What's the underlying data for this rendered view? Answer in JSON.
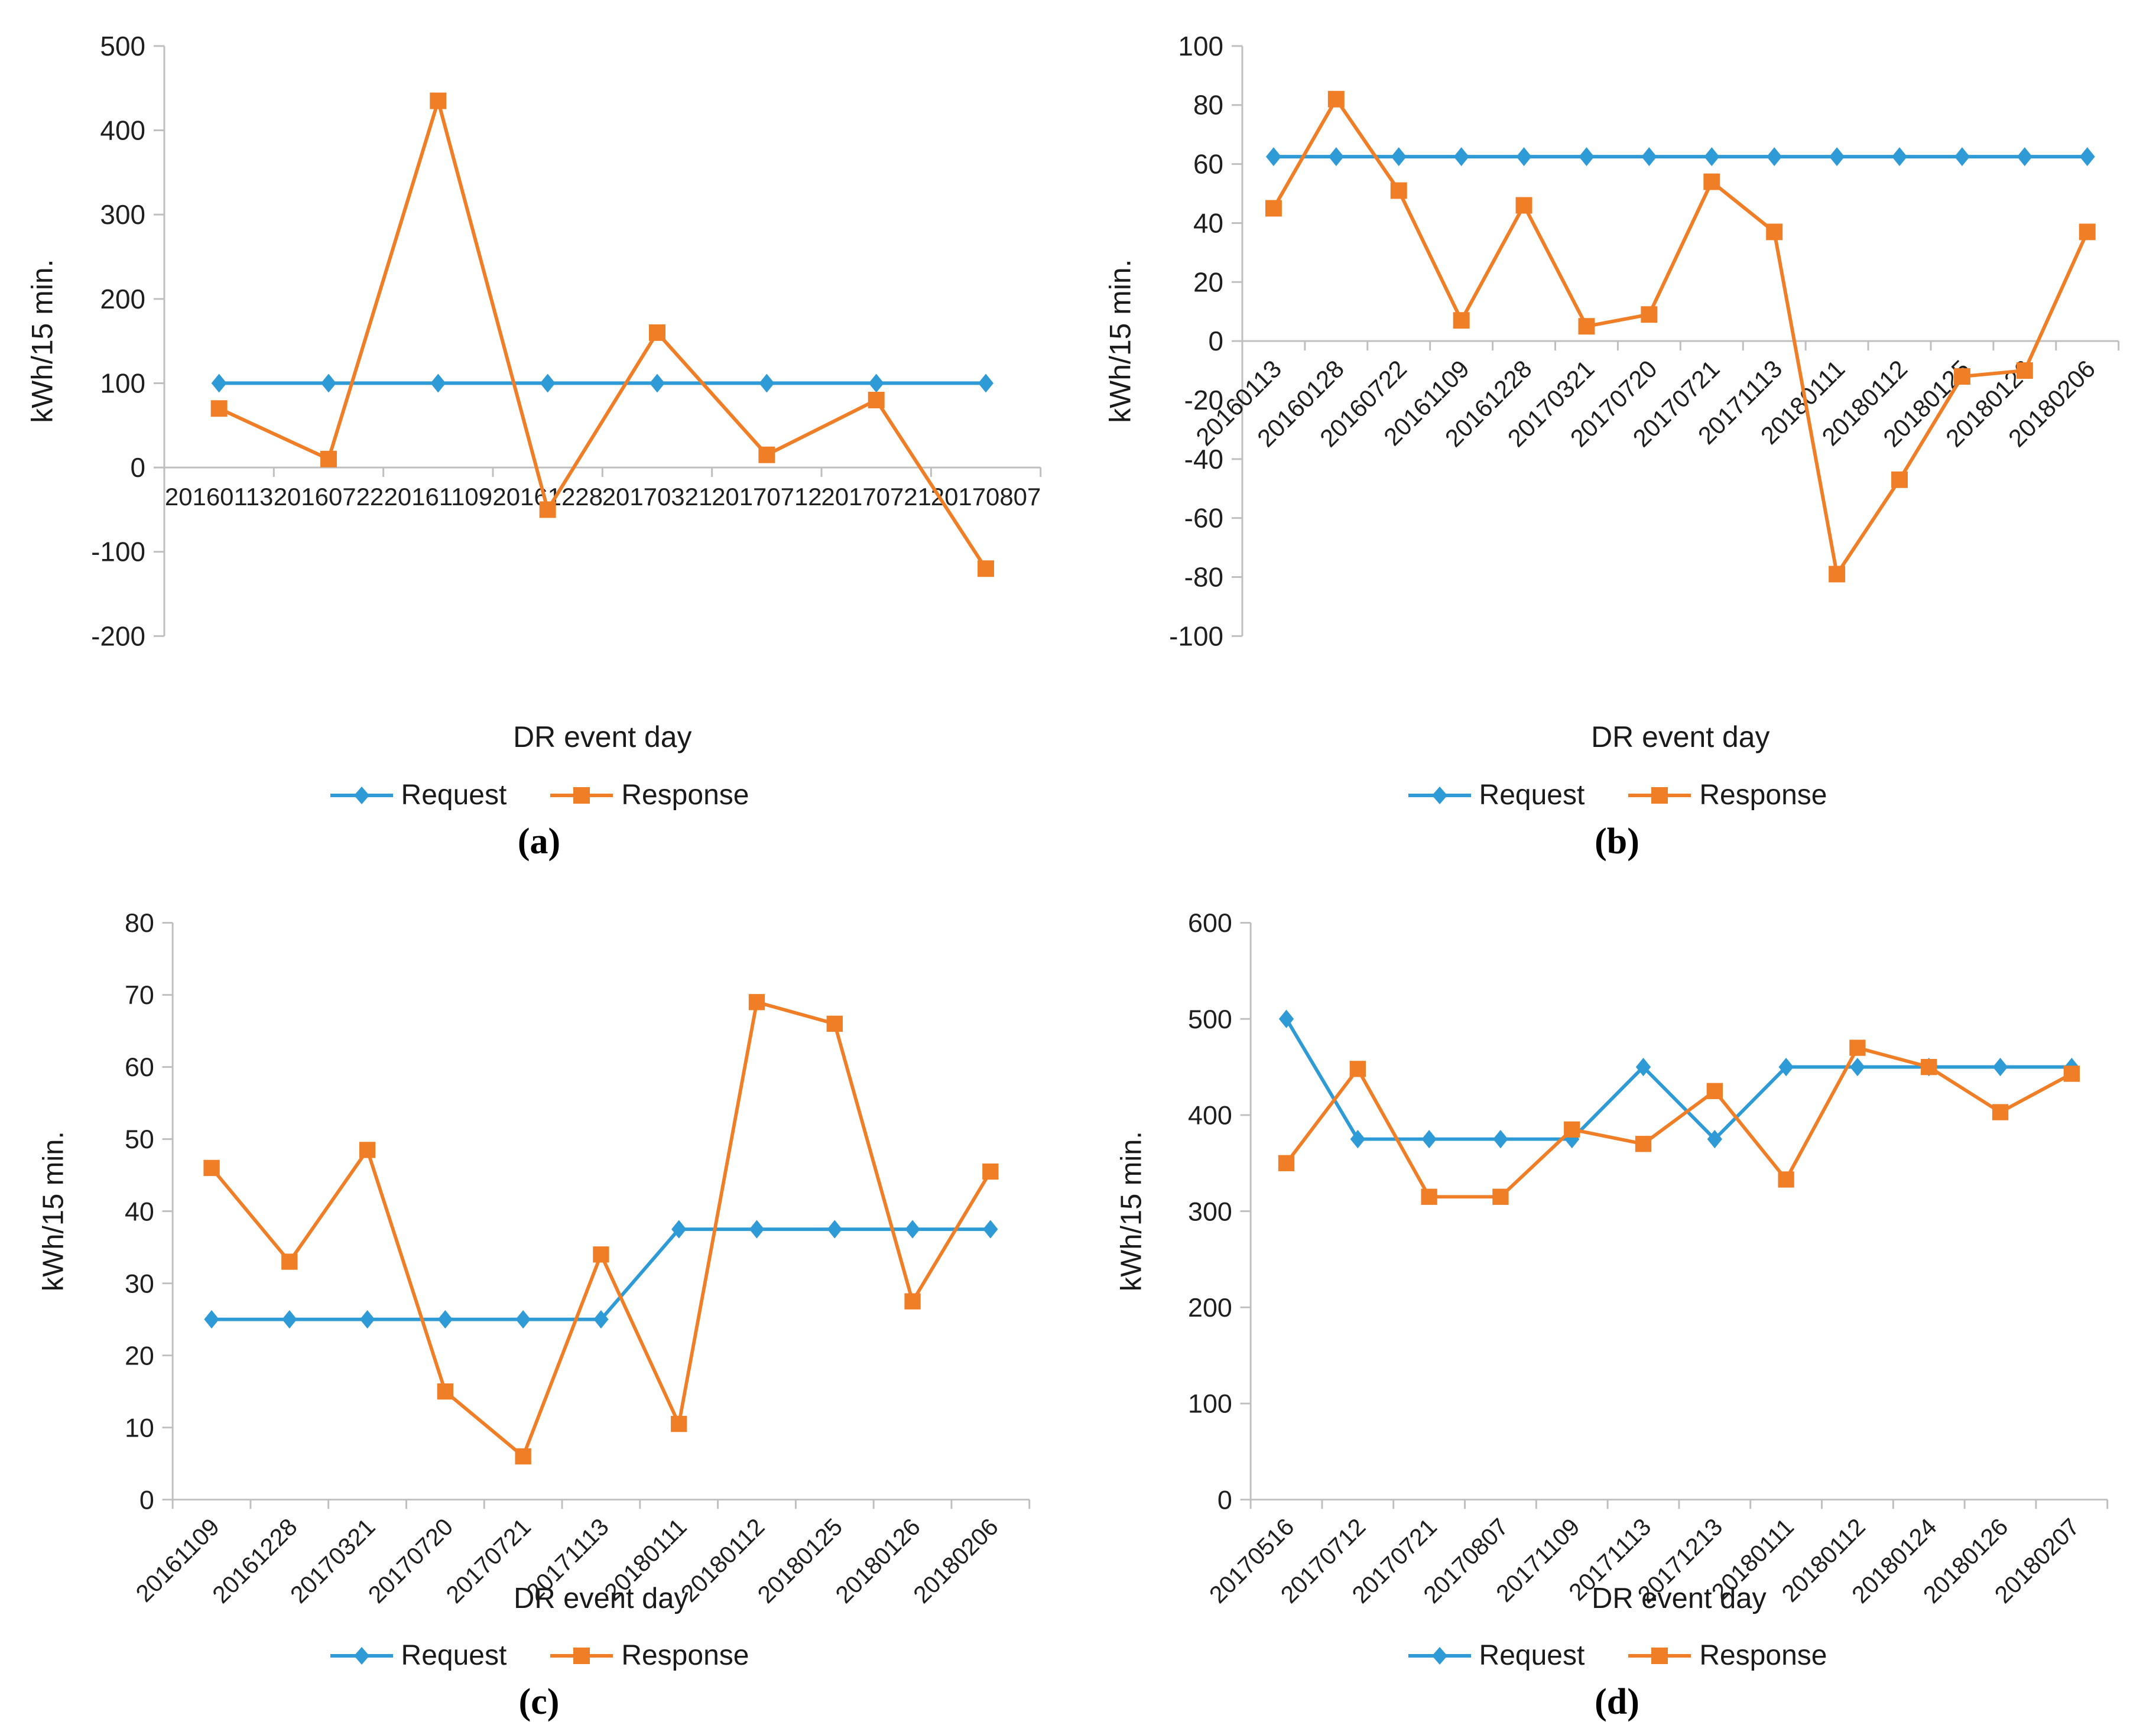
{
  "figure": {
    "y_axis_label": "kWh/15 min.",
    "x_axis_label": "DR event day",
    "legend_labels": [
      "Request",
      "Response"
    ],
    "colors": {
      "request": "#2E9BD6",
      "response": "#F07E26",
      "axis_line": "#BFBFBF",
      "tick_text": "#1f1f1f"
    }
  },
  "chart_data": [
    {
      "id": "a",
      "caption": "(a)",
      "type": "line",
      "xlabel": "DR event day",
      "ylabel": "kWh/15 min.",
      "ylim": [
        -200,
        500
      ],
      "ytick_step": 100,
      "rotated_x_labels": false,
      "grid": false,
      "legend_position": "bottom",
      "categories": [
        "20160113",
        "20160722",
        "20161109",
        "20161228",
        "20170321",
        "20170712",
        "20170721",
        "20170807"
      ],
      "series": [
        {
          "name": "Request",
          "marker": "diamond",
          "values": [
            100,
            100,
            100,
            100,
            100,
            100,
            100,
            100
          ]
        },
        {
          "name": "Response",
          "marker": "square",
          "values": [
            70,
            10,
            435,
            -50,
            160,
            15,
            80,
            -120
          ]
        }
      ]
    },
    {
      "id": "b",
      "caption": "(b)",
      "type": "line",
      "xlabel": "DR event day",
      "ylabel": "kWh/15 min.",
      "ylim": [
        -100,
        100
      ],
      "ytick_step": 20,
      "rotated_x_labels": true,
      "grid": false,
      "legend_position": "bottom",
      "categories": [
        "20160113",
        "20160128",
        "20160722",
        "20161109",
        "20161228",
        "20170321",
        "20170720",
        "20170721",
        "20171113",
        "20180111",
        "20180112",
        "20180125",
        "20180126",
        "20180206"
      ],
      "series": [
        {
          "name": "Request",
          "marker": "diamond",
          "values": [
            62.5,
            62.5,
            62.5,
            62.5,
            62.5,
            62.5,
            62.5,
            62.5,
            62.5,
            62.5,
            62.5,
            62.5,
            62.5,
            62.5
          ]
        },
        {
          "name": "Response",
          "marker": "square",
          "values": [
            45,
            82,
            51,
            7,
            46,
            5,
            9,
            54,
            37,
            -79,
            -47,
            -12,
            -10,
            37
          ]
        }
      ]
    },
    {
      "id": "c",
      "caption": "(c)",
      "type": "line",
      "xlabel": "DR event day",
      "ylabel": "kWh/15 min.",
      "ylim": [
        0,
        80
      ],
      "ytick_step": 10,
      "rotated_x_labels": true,
      "grid": false,
      "legend_position": "bottom",
      "categories": [
        "20161109",
        "20161228",
        "20170321",
        "20170720",
        "20170721",
        "20171113",
        "20180111",
        "20180112",
        "20180125",
        "20180126",
        "20180206"
      ],
      "series": [
        {
          "name": "Request",
          "marker": "diamond",
          "values": [
            25,
            25,
            25,
            25,
            25,
            25,
            37.5,
            37.5,
            37.5,
            37.5,
            37.5
          ]
        },
        {
          "name": "Response",
          "marker": "square",
          "values": [
            46,
            33,
            48.5,
            15,
            6,
            34,
            10.5,
            69,
            66,
            27.5,
            45.5
          ]
        }
      ]
    },
    {
      "id": "d",
      "caption": "(d)",
      "type": "line",
      "xlabel": "DR event day",
      "ylabel": "kWh/15 min.",
      "ylim": [
        0,
        600
      ],
      "ytick_step": 100,
      "rotated_x_labels": true,
      "grid": false,
      "legend_position": "bottom",
      "categories": [
        "20170516",
        "20170712",
        "20170721",
        "20170807",
        "20171109",
        "20171113",
        "20171213",
        "20180111",
        "20180112",
        "20180124",
        "20180126",
        "20180207"
      ],
      "series": [
        {
          "name": "Request",
          "marker": "diamond",
          "values": [
            500,
            375,
            375,
            375,
            375,
            450,
            375,
            450,
            450,
            450,
            450,
            450
          ]
        },
        {
          "name": "Response",
          "marker": "square",
          "values": [
            350,
            448,
            315,
            315,
            385,
            370,
            425,
            333,
            470,
            450,
            403,
            443
          ]
        }
      ]
    }
  ]
}
